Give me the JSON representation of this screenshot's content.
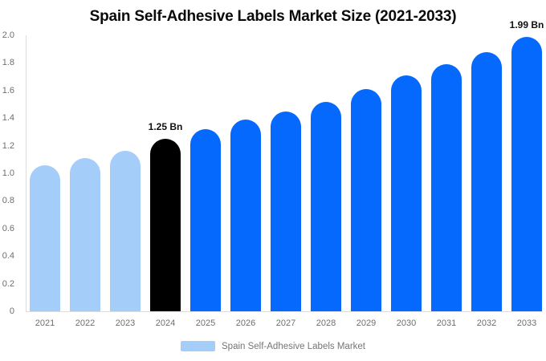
{
  "title": "Spain Self-Adhesive Labels Market Size (2021-2033)",
  "chart_data": {
    "type": "bar",
    "title": "Spain Self-Adhesive Labels Market Size (2021-2033)",
    "categories": [
      "2021",
      "2022",
      "2023",
      "2024",
      "2025",
      "2026",
      "2027",
      "2028",
      "2029",
      "2030",
      "2031",
      "2032",
      "2033"
    ],
    "values": [
      1.06,
      1.11,
      1.16,
      1.25,
      1.32,
      1.39,
      1.45,
      1.52,
      1.61,
      1.71,
      1.79,
      1.88,
      1.99
    ],
    "unit": "Bn",
    "xlabel": "",
    "ylabel": "",
    "ylim": [
      0,
      2.0
    ],
    "ytick_step": 0.2,
    "ytick_labels": [
      "0",
      "0.2",
      "0.4",
      "0.6",
      "0.8",
      "1.0",
      "1.2",
      "1.4",
      "1.6",
      "1.8",
      "2.0"
    ],
    "grid": false,
    "legend": {
      "label": "Spain Self-Adhesive Labels Market",
      "position": "bottom",
      "swatch_color": "#a4cdfa"
    },
    "colors": {
      "historical": "#a4cdfa",
      "highlight": "#000000",
      "forecast": "#0569fd"
    },
    "color_roles": [
      "historical",
      "historical",
      "historical",
      "highlight",
      "forecast",
      "forecast",
      "forecast",
      "forecast",
      "forecast",
      "forecast",
      "forecast",
      "forecast",
      "forecast"
    ],
    "annotations": [
      {
        "category": "2024",
        "text": "1.25 Bn"
      },
      {
        "category": "2033",
        "text": "1.99 Bn"
      }
    ],
    "axis_text_color": "#6e6e6e",
    "axis_line_color": "#dcdcdc"
  }
}
